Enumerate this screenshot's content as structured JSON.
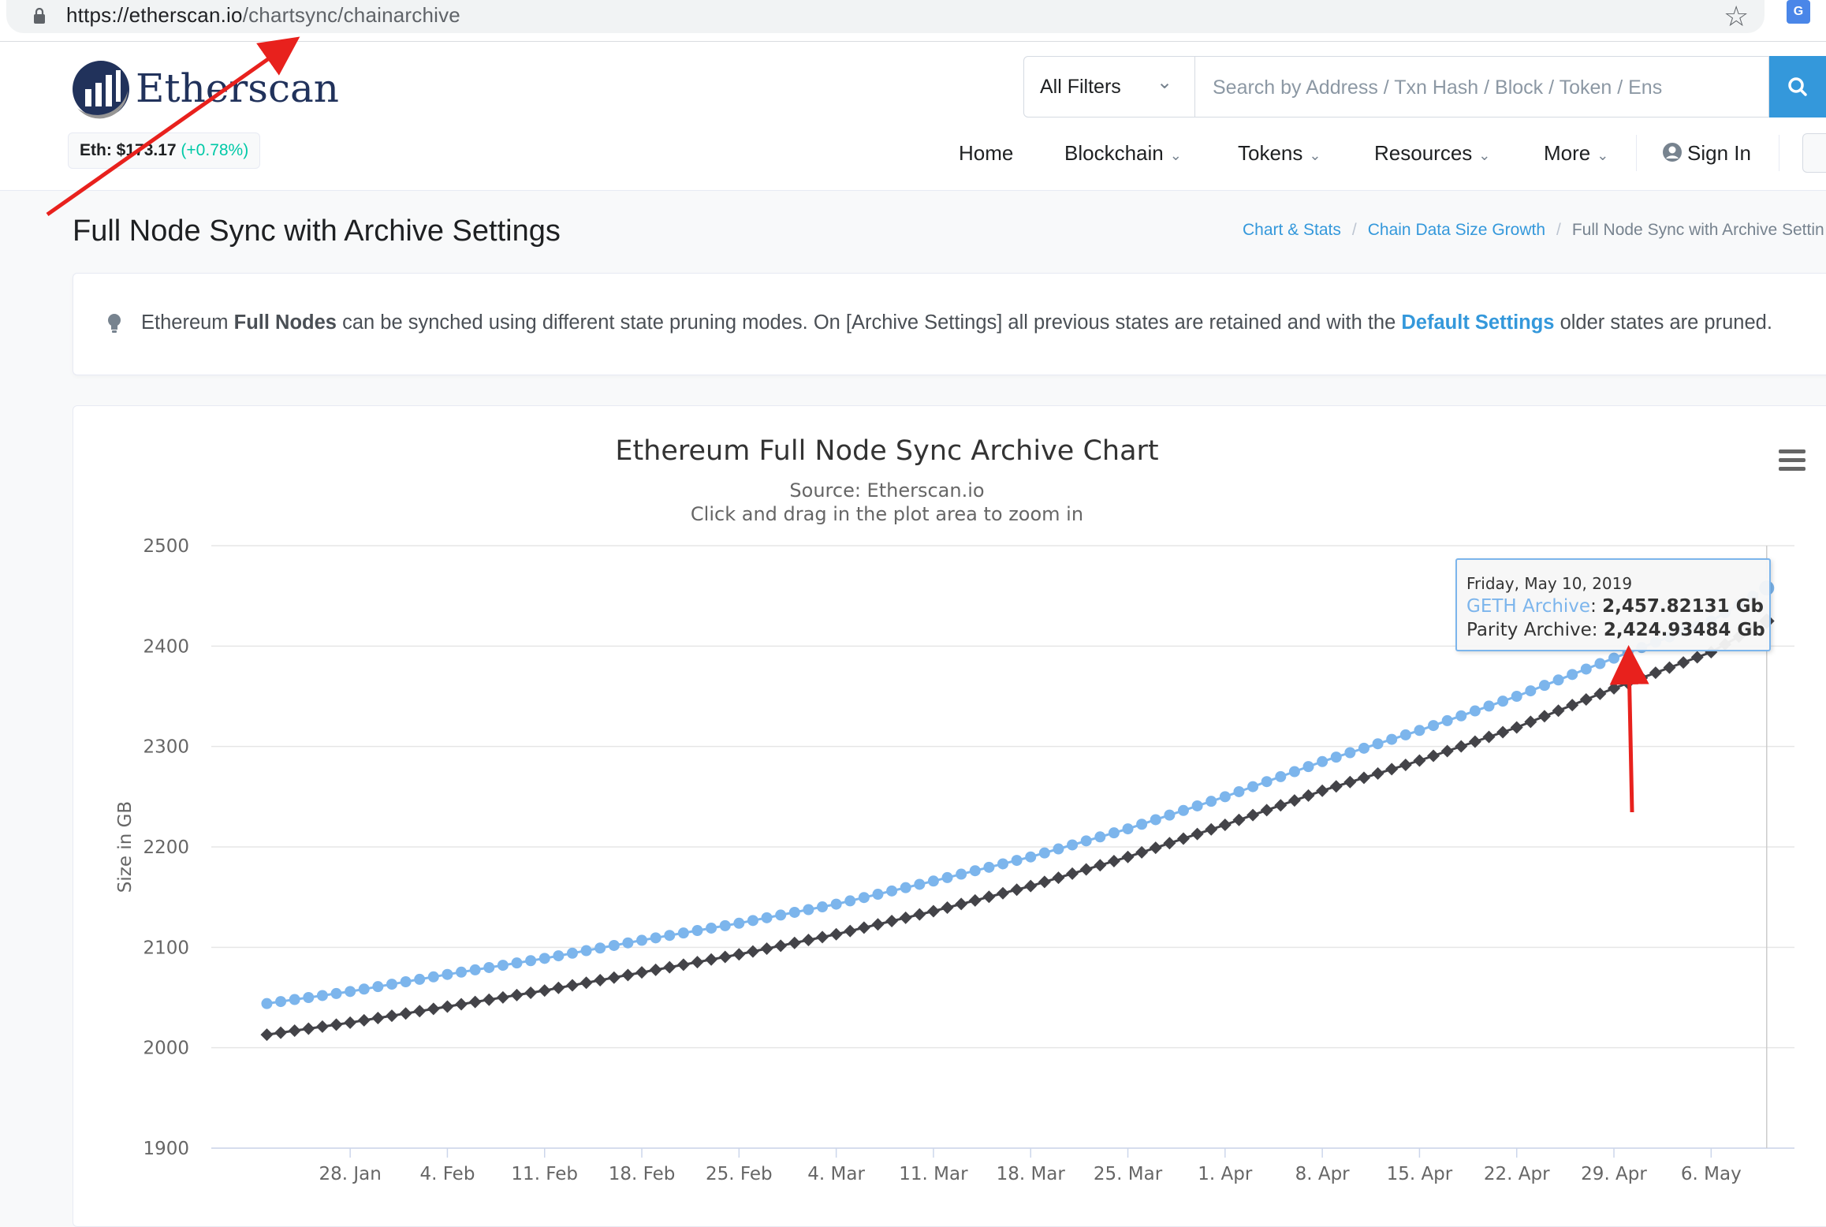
{
  "browser": {
    "url_host": "https://etherscan.io",
    "url_path": "/chartsync/chainarchive"
  },
  "header": {
    "logo_text": "Etherscan",
    "eth_price_label": "Eth: $173.17",
    "eth_price_change": "(+0.78%)",
    "filter_label": "All Filters",
    "search_placeholder": "Search by Address / Txn Hash / Block / Token / Ens",
    "nav": {
      "home": "Home",
      "blockchain": "Blockchain",
      "tokens": "Tokens",
      "resources": "Resources",
      "more": "More",
      "sign_in": "Sign In"
    }
  },
  "page": {
    "title": "Full Node Sync with Archive Settings",
    "breadcrumb": [
      "Chart & Stats",
      "Chain Data Size Growth",
      "Full Node Sync with Archive Settin"
    ]
  },
  "info": {
    "t1": "Ethereum ",
    "b1": "Full Nodes",
    "t2": " can be synched using different state pruning modes. On [Archive Settings] all previous states are retained and with the ",
    "link": "Default Settings",
    "t3": " older states are pruned."
  },
  "colors": {
    "geth": "#7cb5ec",
    "parity": "#434348",
    "accent": "#3498db",
    "annotation": "#e8211d"
  },
  "tooltip": {
    "date": "Friday, May 10, 2019",
    "geth_name": "GETH Archive",
    "geth_value": "2,457.82131 Gb",
    "parity_name": "Parity Archive",
    "parity_value": "2,424.93484 Gb"
  },
  "chart_data": {
    "type": "line",
    "title": "Ethereum Full Node Sync Archive Chart",
    "subtitle": "Source: Etherscan.io",
    "subtitle2": "Click and drag in the plot area to zoom in",
    "ylabel": "Size in GB",
    "xlabel": "",
    "ylim": [
      1900,
      2500
    ],
    "yticks": [
      1900,
      2000,
      2100,
      2200,
      2300,
      2400,
      2500
    ],
    "x_start": "2019-01-22",
    "x_end": "2019-05-10",
    "xticks": [
      {
        "date": "2019-01-28",
        "label": "28. Jan"
      },
      {
        "date": "2019-02-04",
        "label": "4. Feb"
      },
      {
        "date": "2019-02-11",
        "label": "11. Feb"
      },
      {
        "date": "2019-02-18",
        "label": "18. Feb"
      },
      {
        "date": "2019-02-25",
        "label": "25. Feb"
      },
      {
        "date": "2019-03-04",
        "label": "4. Mar"
      },
      {
        "date": "2019-03-11",
        "label": "11. Mar"
      },
      {
        "date": "2019-03-18",
        "label": "18. Mar"
      },
      {
        "date": "2019-03-25",
        "label": "25. Mar"
      },
      {
        "date": "2019-04-01",
        "label": "1. Apr"
      },
      {
        "date": "2019-04-08",
        "label": "8. Apr"
      },
      {
        "date": "2019-04-15",
        "label": "15. Apr"
      },
      {
        "date": "2019-04-22",
        "label": "22. Apr"
      },
      {
        "date": "2019-04-29",
        "label": "29. Apr"
      },
      {
        "date": "2019-05-06",
        "label": "6. May"
      }
    ],
    "series": [
      {
        "name": "GETH Archive",
        "values": [
          {
            "x": "2019-01-22",
            "y": 2044
          },
          {
            "x": "2019-01-28",
            "y": 2056
          },
          {
            "x": "2019-02-04",
            "y": 2073
          },
          {
            "x": "2019-02-11",
            "y": 2089
          },
          {
            "x": "2019-02-18",
            "y": 2107
          },
          {
            "x": "2019-02-25",
            "y": 2124
          },
          {
            "x": "2019-03-04",
            "y": 2143
          },
          {
            "x": "2019-03-11",
            "y": 2166
          },
          {
            "x": "2019-03-18",
            "y": 2190
          },
          {
            "x": "2019-03-25",
            "y": 2218
          },
          {
            "x": "2019-04-01",
            "y": 2250
          },
          {
            "x": "2019-04-08",
            "y": 2285
          },
          {
            "x": "2019-04-15",
            "y": 2316
          },
          {
            "x": "2019-04-22",
            "y": 2350
          },
          {
            "x": "2019-04-29",
            "y": 2388
          },
          {
            "x": "2019-05-06",
            "y": 2425
          },
          {
            "x": "2019-05-10",
            "y": 2457.82
          }
        ]
      },
      {
        "name": "Parity Archive",
        "values": [
          {
            "x": "2019-01-22",
            "y": 2013
          },
          {
            "x": "2019-01-28",
            "y": 2025
          },
          {
            "x": "2019-02-04",
            "y": 2041
          },
          {
            "x": "2019-02-11",
            "y": 2057
          },
          {
            "x": "2019-02-18",
            "y": 2075
          },
          {
            "x": "2019-02-25",
            "y": 2093
          },
          {
            "x": "2019-03-04",
            "y": 2113
          },
          {
            "x": "2019-03-11",
            "y": 2136
          },
          {
            "x": "2019-03-18",
            "y": 2161
          },
          {
            "x": "2019-03-25",
            "y": 2190
          },
          {
            "x": "2019-04-01",
            "y": 2222
          },
          {
            "x": "2019-04-08",
            "y": 2256
          },
          {
            "x": "2019-04-15",
            "y": 2286
          },
          {
            "x": "2019-04-22",
            "y": 2319
          },
          {
            "x": "2019-04-29",
            "y": 2358
          },
          {
            "x": "2019-05-06",
            "y": 2394
          },
          {
            "x": "2019-05-10",
            "y": 2424.93
          }
        ]
      }
    ],
    "legend": "none",
    "grid": true
  }
}
